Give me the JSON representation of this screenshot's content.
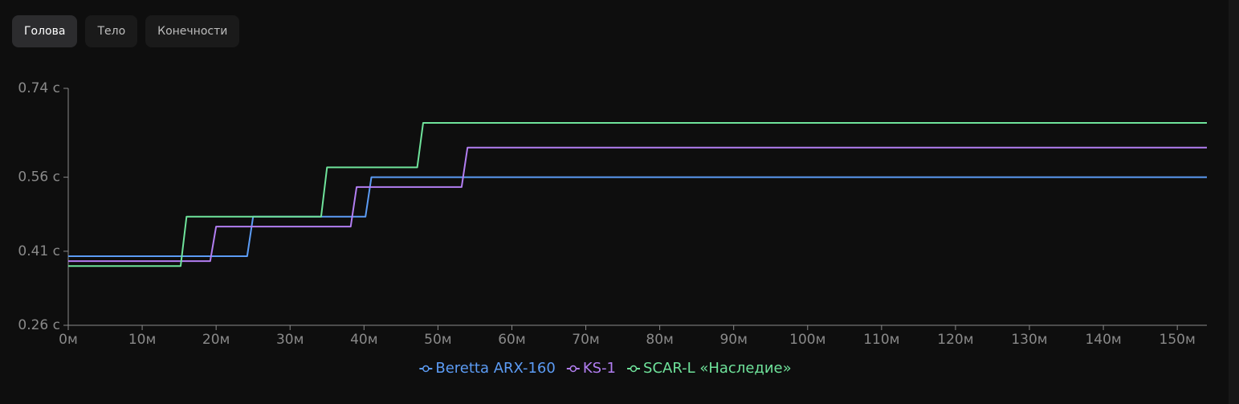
{
  "tabs": [
    "Голова",
    "Тело",
    "Конечности"
  ],
  "active_tab": 0,
  "chart_data": {
    "type": "line",
    "xlim": [
      0,
      154
    ],
    "xticks": [
      {
        "value": 0,
        "label": "0м"
      },
      {
        "value": 10,
        "label": "10м"
      },
      {
        "value": 20,
        "label": "20м"
      },
      {
        "value": 30,
        "label": "30м"
      },
      {
        "value": 40,
        "label": "40м"
      },
      {
        "value": 50,
        "label": "50м"
      },
      {
        "value": 60,
        "label": "60м"
      },
      {
        "value": 70,
        "label": "70м"
      },
      {
        "value": 80,
        "label": "80м"
      },
      {
        "value": 90,
        "label": "90м"
      },
      {
        "value": 100,
        "label": "100м"
      },
      {
        "value": 110,
        "label": "110м"
      },
      {
        "value": 120,
        "label": "120м"
      },
      {
        "value": 130,
        "label": "130м"
      },
      {
        "value": 140,
        "label": "140м"
      },
      {
        "value": 150,
        "label": "150м"
      }
    ],
    "ylim": [
      0.26,
      0.74
    ],
    "yticks": [
      {
        "value": 0.26,
        "label": "0.26 с"
      },
      {
        "value": 0.41,
        "label": "0.41 с"
      },
      {
        "value": 0.56,
        "label": "0.56 с"
      },
      {
        "value": 0.74,
        "label": "0.74 с"
      }
    ],
    "series": [
      {
        "name": "Beretta ARX-160",
        "color": "#5c9cf5",
        "x": [
          0,
          24.2,
          25,
          40.2,
          41,
          154
        ],
        "values": [
          0.4,
          0.4,
          0.48,
          0.48,
          0.56,
          0.56
        ]
      },
      {
        "name": "KS-1",
        "color": "#b27ef2",
        "x": [
          0,
          19.2,
          20,
          38.2,
          39,
          53.2,
          54,
          154
        ],
        "values": [
          0.39,
          0.39,
          0.46,
          0.46,
          0.54,
          0.54,
          0.62,
          0.62
        ]
      },
      {
        "name": "SCAR-L «Наследие»",
        "color": "#6fe39b",
        "x": [
          0,
          15.2,
          16,
          34.2,
          35,
          47.2,
          48,
          154
        ],
        "values": [
          0.38,
          0.38,
          0.48,
          0.48,
          0.58,
          0.58,
          0.67,
          0.67
        ]
      }
    ],
    "legend": "bottom"
  }
}
